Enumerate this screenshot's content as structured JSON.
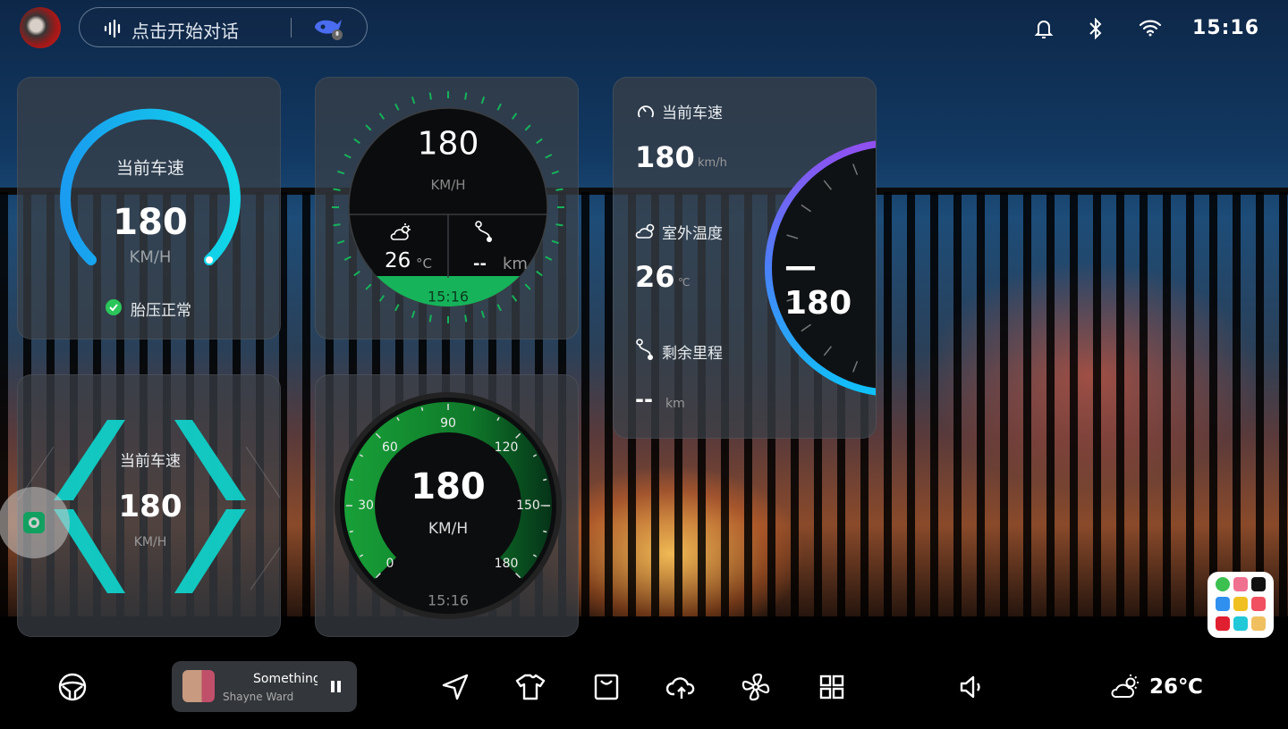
{
  "top_bar": {
    "voice_placeholder": "点击开始对话",
    "time": "15:16",
    "icons": [
      "avatar",
      "voice-wave-icon",
      "assistant-whale-icon",
      "bell-icon",
      "bluetooth-icon",
      "wifi-icon"
    ]
  },
  "widget_speed_arc": {
    "label": "当前车速",
    "speed": "180",
    "unit": "KM/H",
    "tire_status": "胎压正常",
    "arc_colors": [
      "#1a9cf0",
      "#10d8e8"
    ],
    "status_color": "#2bc65a"
  },
  "widget_round_dash": {
    "speed": "180",
    "unit": "KM/H",
    "temperature": "26",
    "temp_unit": "°C",
    "range": "--",
    "range_unit": "km",
    "time": "15:16",
    "accent": "#16b35a"
  },
  "widget_info_list": {
    "speed_label": "当前车速",
    "speed": "180",
    "speed_unit": "km/h",
    "temp_label": "室外温度",
    "temp": "26",
    "temp_unit": "℃",
    "range_label": "剩余里程",
    "range": "--",
    "range_unit": "km",
    "dial_value": "—180",
    "arc_colors": [
      "#9050f0",
      "#10c0f8"
    ]
  },
  "widget_diamond": {
    "label": "当前车速",
    "speed": "180",
    "unit": "KM/H",
    "accent": "#10d0c8"
  },
  "widget_dial": {
    "speed": "180",
    "unit": "KM/H",
    "time": "15:16",
    "ticks": [
      "0",
      "30",
      "60",
      "90",
      "120",
      "150-",
      "180"
    ],
    "max": 180,
    "accent": "#18a038"
  },
  "media": {
    "title": "Something",
    "artist": "Shayne Ward"
  },
  "dock": {
    "icons": [
      "steering-wheel-icon",
      "navigation-icon",
      "shirt-icon",
      "bag-icon",
      "cloud-icon",
      "fan-icon",
      "apps-grid-icon",
      "volume-icon"
    ],
    "weather_temp": "26℃"
  }
}
